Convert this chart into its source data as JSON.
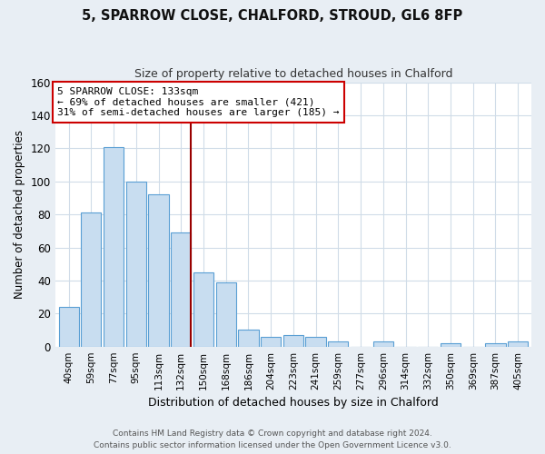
{
  "title_line1": "5, SPARROW CLOSE, CHALFORD, STROUD, GL6 8FP",
  "title_line2": "Size of property relative to detached houses in Chalford",
  "xlabel": "Distribution of detached houses by size in Chalford",
  "ylabel": "Number of detached properties",
  "bin_labels": [
    "40sqm",
    "59sqm",
    "77sqm",
    "95sqm",
    "113sqm",
    "132sqm",
    "150sqm",
    "168sqm",
    "186sqm",
    "204sqm",
    "223sqm",
    "241sqm",
    "259sqm",
    "277sqm",
    "296sqm",
    "314sqm",
    "332sqm",
    "350sqm",
    "369sqm",
    "387sqm",
    "405sqm"
  ],
  "bar_heights": [
    24,
    81,
    121,
    100,
    92,
    69,
    45,
    39,
    10,
    6,
    7,
    6,
    3,
    0,
    3,
    0,
    0,
    2,
    0,
    2,
    3
  ],
  "bar_color": "#c8ddf0",
  "bar_edge_color": "#5a9fd4",
  "vline_color": "#990000",
  "annotation_text": "5 SPARROW CLOSE: 133sqm\n← 69% of detached houses are smaller (421)\n31% of semi-detached houses are larger (185) →",
  "annotation_box_color": "#ffffff",
  "annotation_box_edge": "#cc0000",
  "ylim": [
    0,
    160
  ],
  "yticks": [
    0,
    20,
    40,
    60,
    80,
    100,
    120,
    140,
    160
  ],
  "plot_bg": "#ffffff",
  "fig_bg": "#e8eef4",
  "grid_color": "#d0dce8",
  "footer_line1": "Contains HM Land Registry data © Crown copyright and database right 2024.",
  "footer_line2": "Contains public sector information licensed under the Open Government Licence v3.0."
}
